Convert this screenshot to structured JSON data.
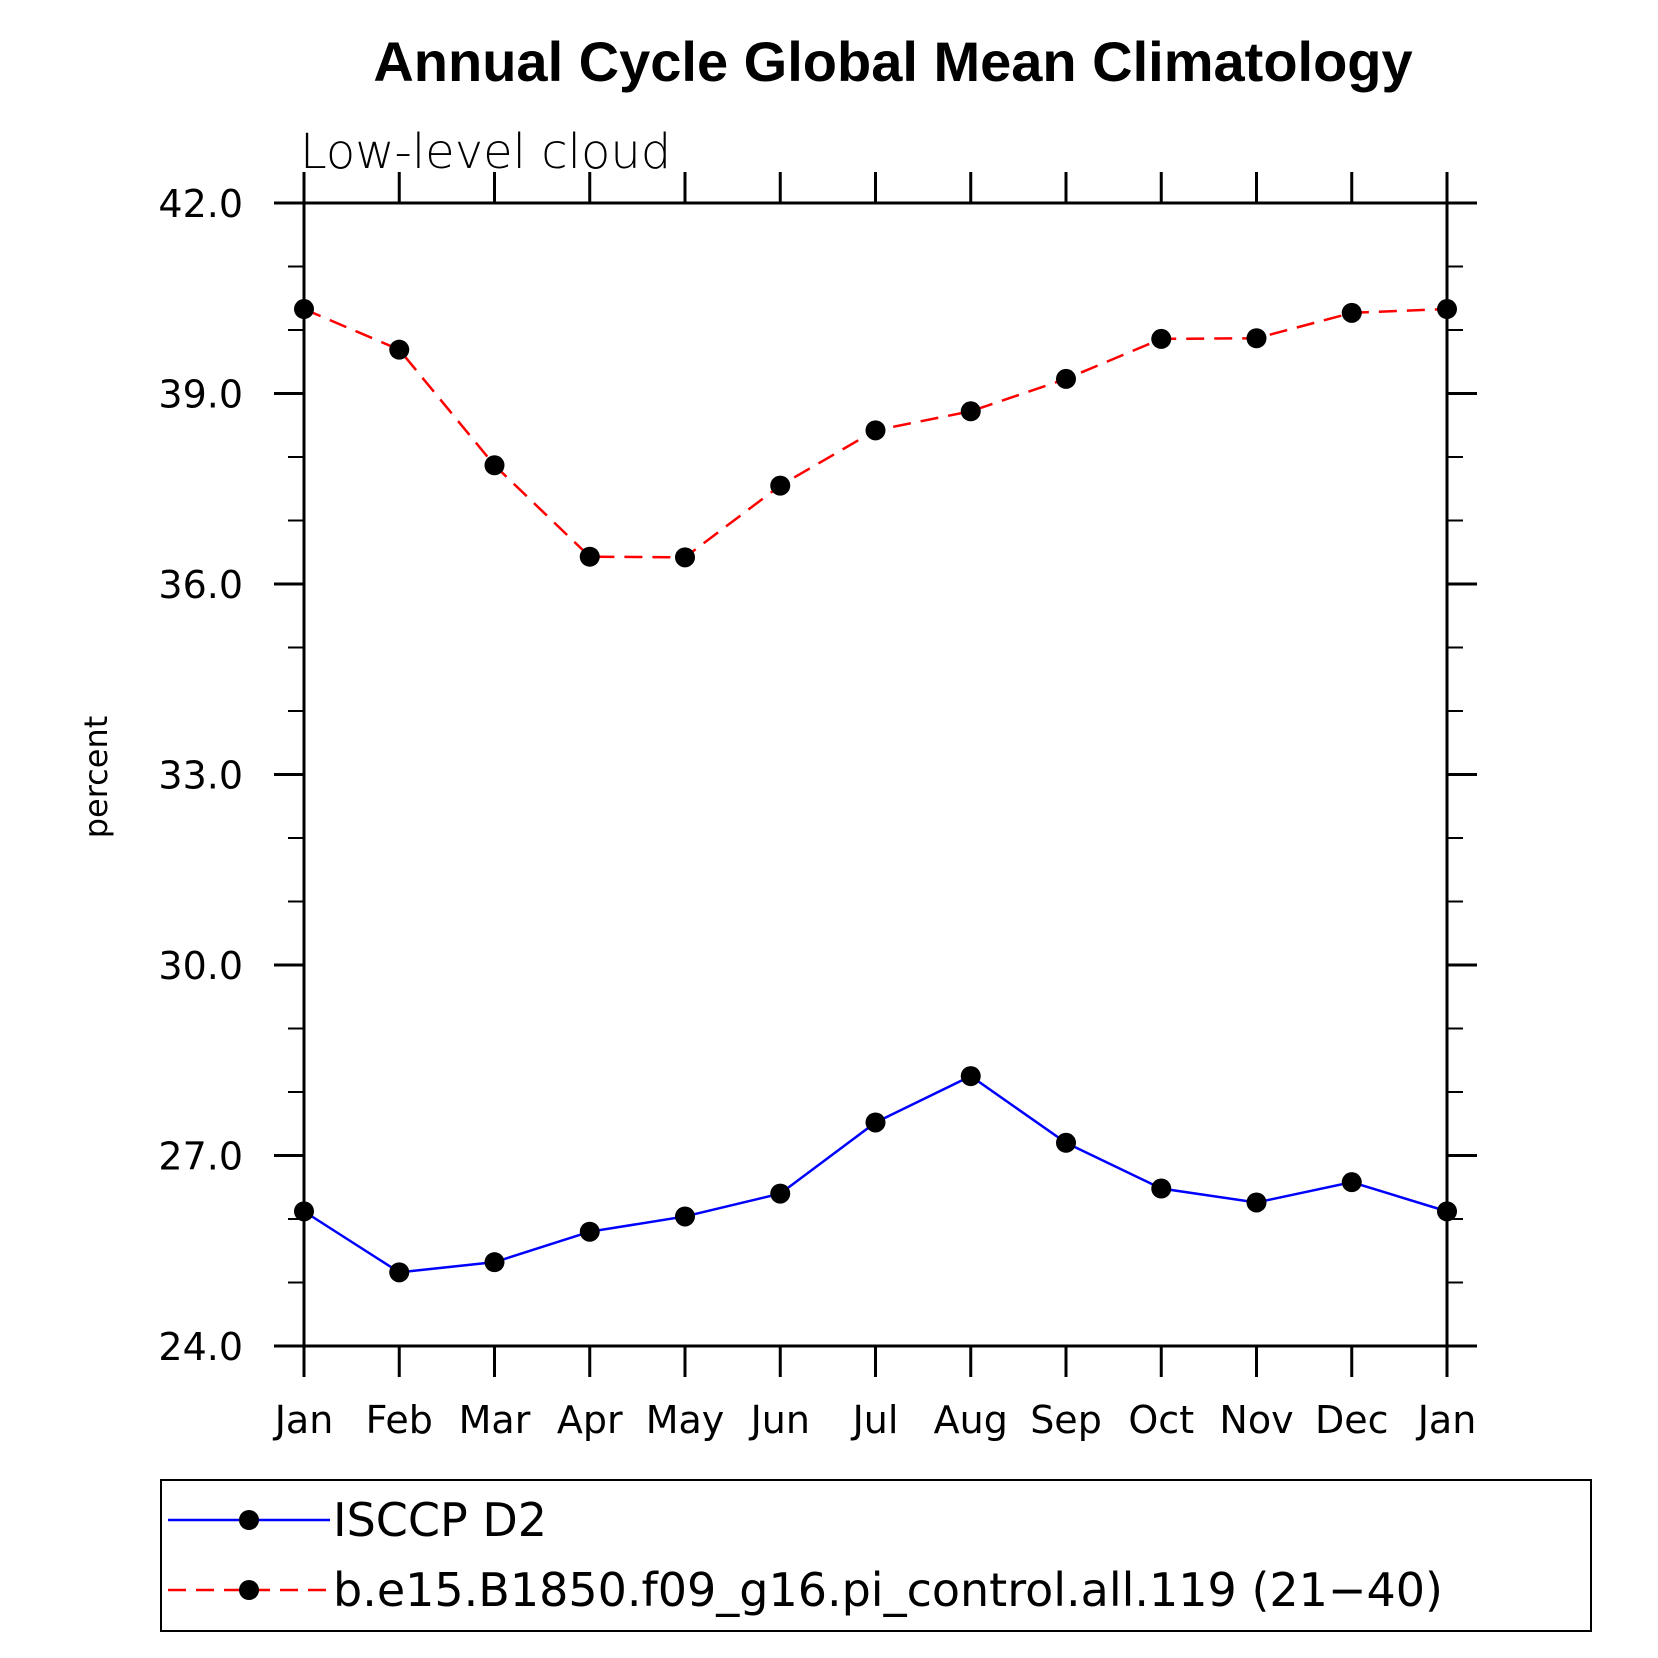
{
  "chart_data": {
    "type": "line",
    "title": "Annual Cycle Global Mean Climatology",
    "subtitle": "Low-level cloud",
    "xlabel": "",
    "ylabel": "percent",
    "categories": [
      "Jan",
      "Feb",
      "Mar",
      "Apr",
      "May",
      "Jun",
      "Jul",
      "Aug",
      "Sep",
      "Oct",
      "Nov",
      "Dec",
      "Jan"
    ],
    "ylim": [
      24.0,
      42.0
    ],
    "yticks": [
      "24.0",
      "27.0",
      "30.0",
      "33.0",
      "36.0",
      "39.0",
      "42.0"
    ],
    "series": [
      {
        "name": "ISCCP D2",
        "color": "#0000ff",
        "dash": "solid",
        "values": [
          26.12,
          25.16,
          25.32,
          25.8,
          26.04,
          26.4,
          27.52,
          28.25,
          27.2,
          26.48,
          26.26,
          26.58,
          26.12
        ]
      },
      {
        "name": "b.e15.B1850.f09_g16.pi_control.all.119 (21-40)",
        "color": "#ff0000",
        "dash": "dashed",
        "values": [
          40.33,
          39.69,
          37.87,
          36.43,
          36.42,
          37.55,
          38.42,
          38.72,
          39.23,
          39.86,
          39.87,
          40.27,
          40.33
        ]
      }
    ],
    "legend": {
      "position": "bottom",
      "entries": [
        "ISCCP D2",
        "b.e15.B1850.f09_g16.pi_control.all.119 (21−40)"
      ]
    },
    "grid": false
  }
}
